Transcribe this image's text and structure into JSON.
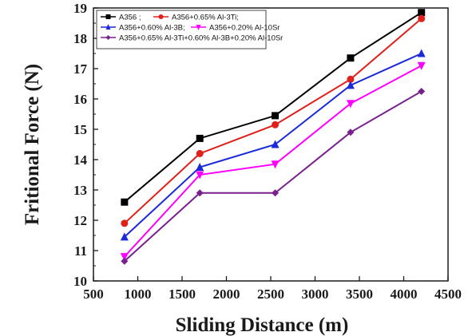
{
  "chart_data": {
    "type": "line",
    "title": "",
    "xlabel": "Sliding Distance (m)",
    "ylabel": "Fritional Force (N)",
    "xlim": [
      500,
      4500
    ],
    "ylim": [
      10,
      19
    ],
    "xticks": [
      500,
      1000,
      1500,
      2000,
      2500,
      3000,
      3500,
      4000,
      4500
    ],
    "yticks": [
      10,
      11,
      12,
      13,
      14,
      15,
      16,
      17,
      18,
      19
    ],
    "grid": false,
    "legend_position": "top-left",
    "x": [
      850,
      1700,
      2550,
      3400,
      4200
    ],
    "series": [
      {
        "name": "A356 ;",
        "color": "#000000",
        "marker": "square",
        "values": [
          12.6,
          14.7,
          15.45,
          17.35,
          18.85
        ]
      },
      {
        "name": "A356+0.65% Al-3Ti;",
        "color": "#e0201b",
        "marker": "circle",
        "values": [
          11.9,
          14.2,
          15.15,
          16.65,
          18.65
        ]
      },
      {
        "name": "A356+0.60% Al-3B;",
        "color": "#1a2ad8",
        "marker": "triangle-up",
        "values": [
          11.45,
          13.75,
          14.5,
          16.45,
          17.5
        ]
      },
      {
        "name": "A356+0.20% Al-10Sr",
        "color": "#ff00ff",
        "marker": "triangle-down",
        "values": [
          10.8,
          13.5,
          13.85,
          15.85,
          17.1
        ]
      },
      {
        "name": "A356+0.65% Al-3Ti+0.60% Al-3B+0.20% Al-10Sr",
        "color": "#7a1f8e",
        "marker": "diamond",
        "values": [
          10.65,
          12.9,
          12.9,
          14.9,
          16.25
        ]
      }
    ]
  }
}
